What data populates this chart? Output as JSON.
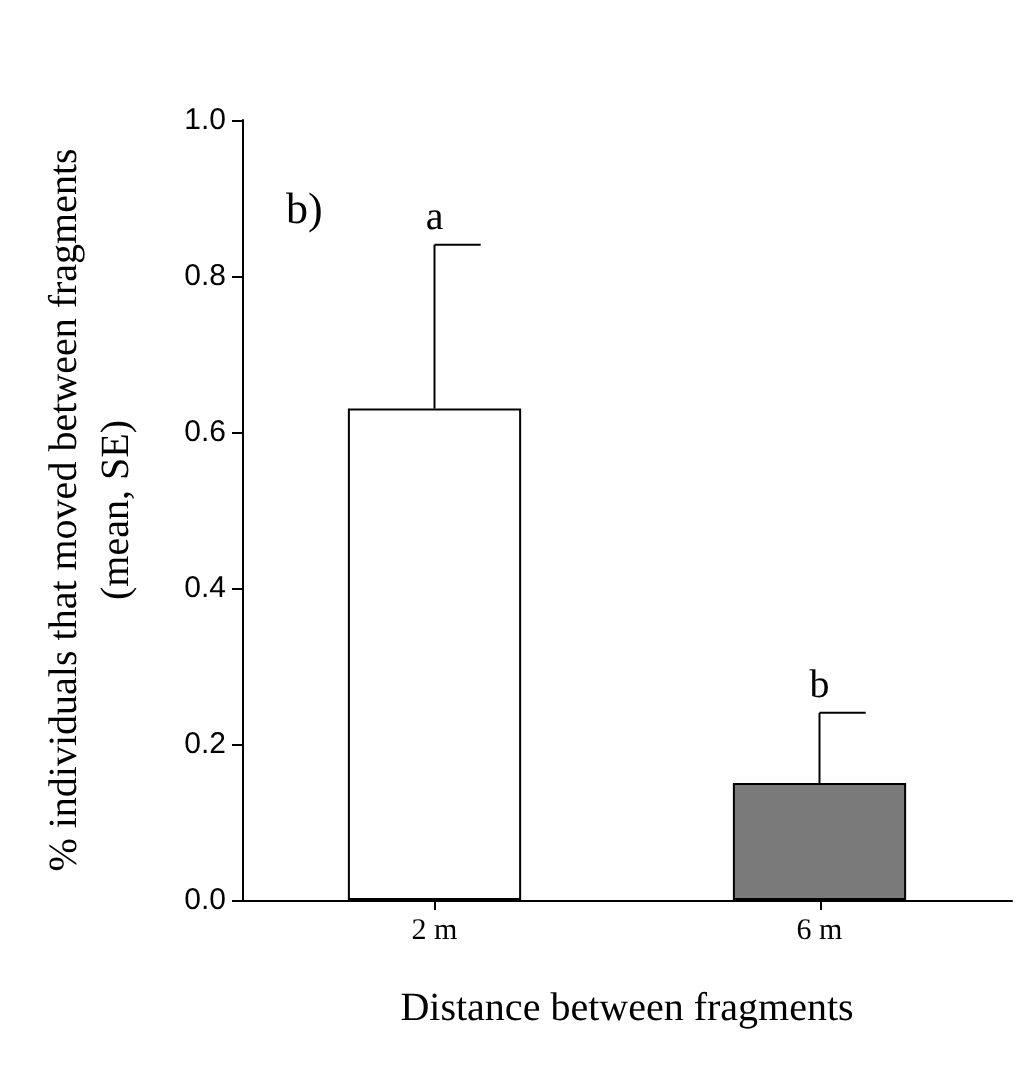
{
  "chart_data": {
    "type": "bar",
    "xlabel": "Distance between fragments",
    "ylabel": "% individuals that moved between fragments\n(mean, SE)",
    "categories": [
      "2 m",
      "6 m"
    ],
    "values": [
      0.63,
      0.15
    ],
    "colors": [
      "#ffffff",
      "#7a7a7a"
    ],
    "errors": [
      [
        0.63,
        0.84
      ],
      [
        0.15,
        0.24
      ]
    ],
    "ylim": [
      0,
      1
    ],
    "yticks": [
      {
        "value": 0,
        "label": "0.0"
      },
      {
        "value": 0.2,
        "label": "0.2"
      },
      {
        "value": 0.4,
        "label": "0.4"
      },
      {
        "value": 0.6,
        "label": "0.6"
      },
      {
        "value": 0.8,
        "label": "0.8"
      },
      {
        "value": 1,
        "label": "1.0"
      }
    ],
    "annotations": [
      "b)",
      {
        "text": "a",
        "x": "2 m",
        "y": 0.84
      },
      {
        "text": "b",
        "x": "6 m",
        "y": 0.24
      }
    ]
  }
}
